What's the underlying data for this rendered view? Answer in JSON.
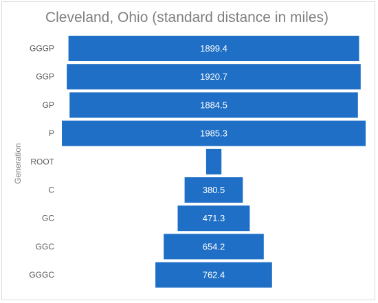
{
  "chart_data": {
    "type": "bar",
    "orientation": "horizontal",
    "layout": "centered-funnel",
    "title": "Cleveland, Ohio (standard distance in miles)",
    "ylabel": "Generation",
    "xlabel": "",
    "categories": [
      "GGGP",
      "GGP",
      "GP",
      "P",
      "ROOT",
      "C",
      "GC",
      "GGC",
      "GGGC"
    ],
    "values": [
      1899.4,
      1920.7,
      1884.5,
      1985.3,
      100,
      380.5,
      471.3,
      654.2,
      762.4
    ],
    "data_labels": [
      "1899.4",
      "1920.7",
      "1884.5",
      "1985.3",
      "",
      "380.5",
      "471.3",
      "654.2",
      "762.4"
    ],
    "bar_color": "#1f6fc6",
    "label_color": "#ffffff",
    "grid": false,
    "legend": "none"
  }
}
